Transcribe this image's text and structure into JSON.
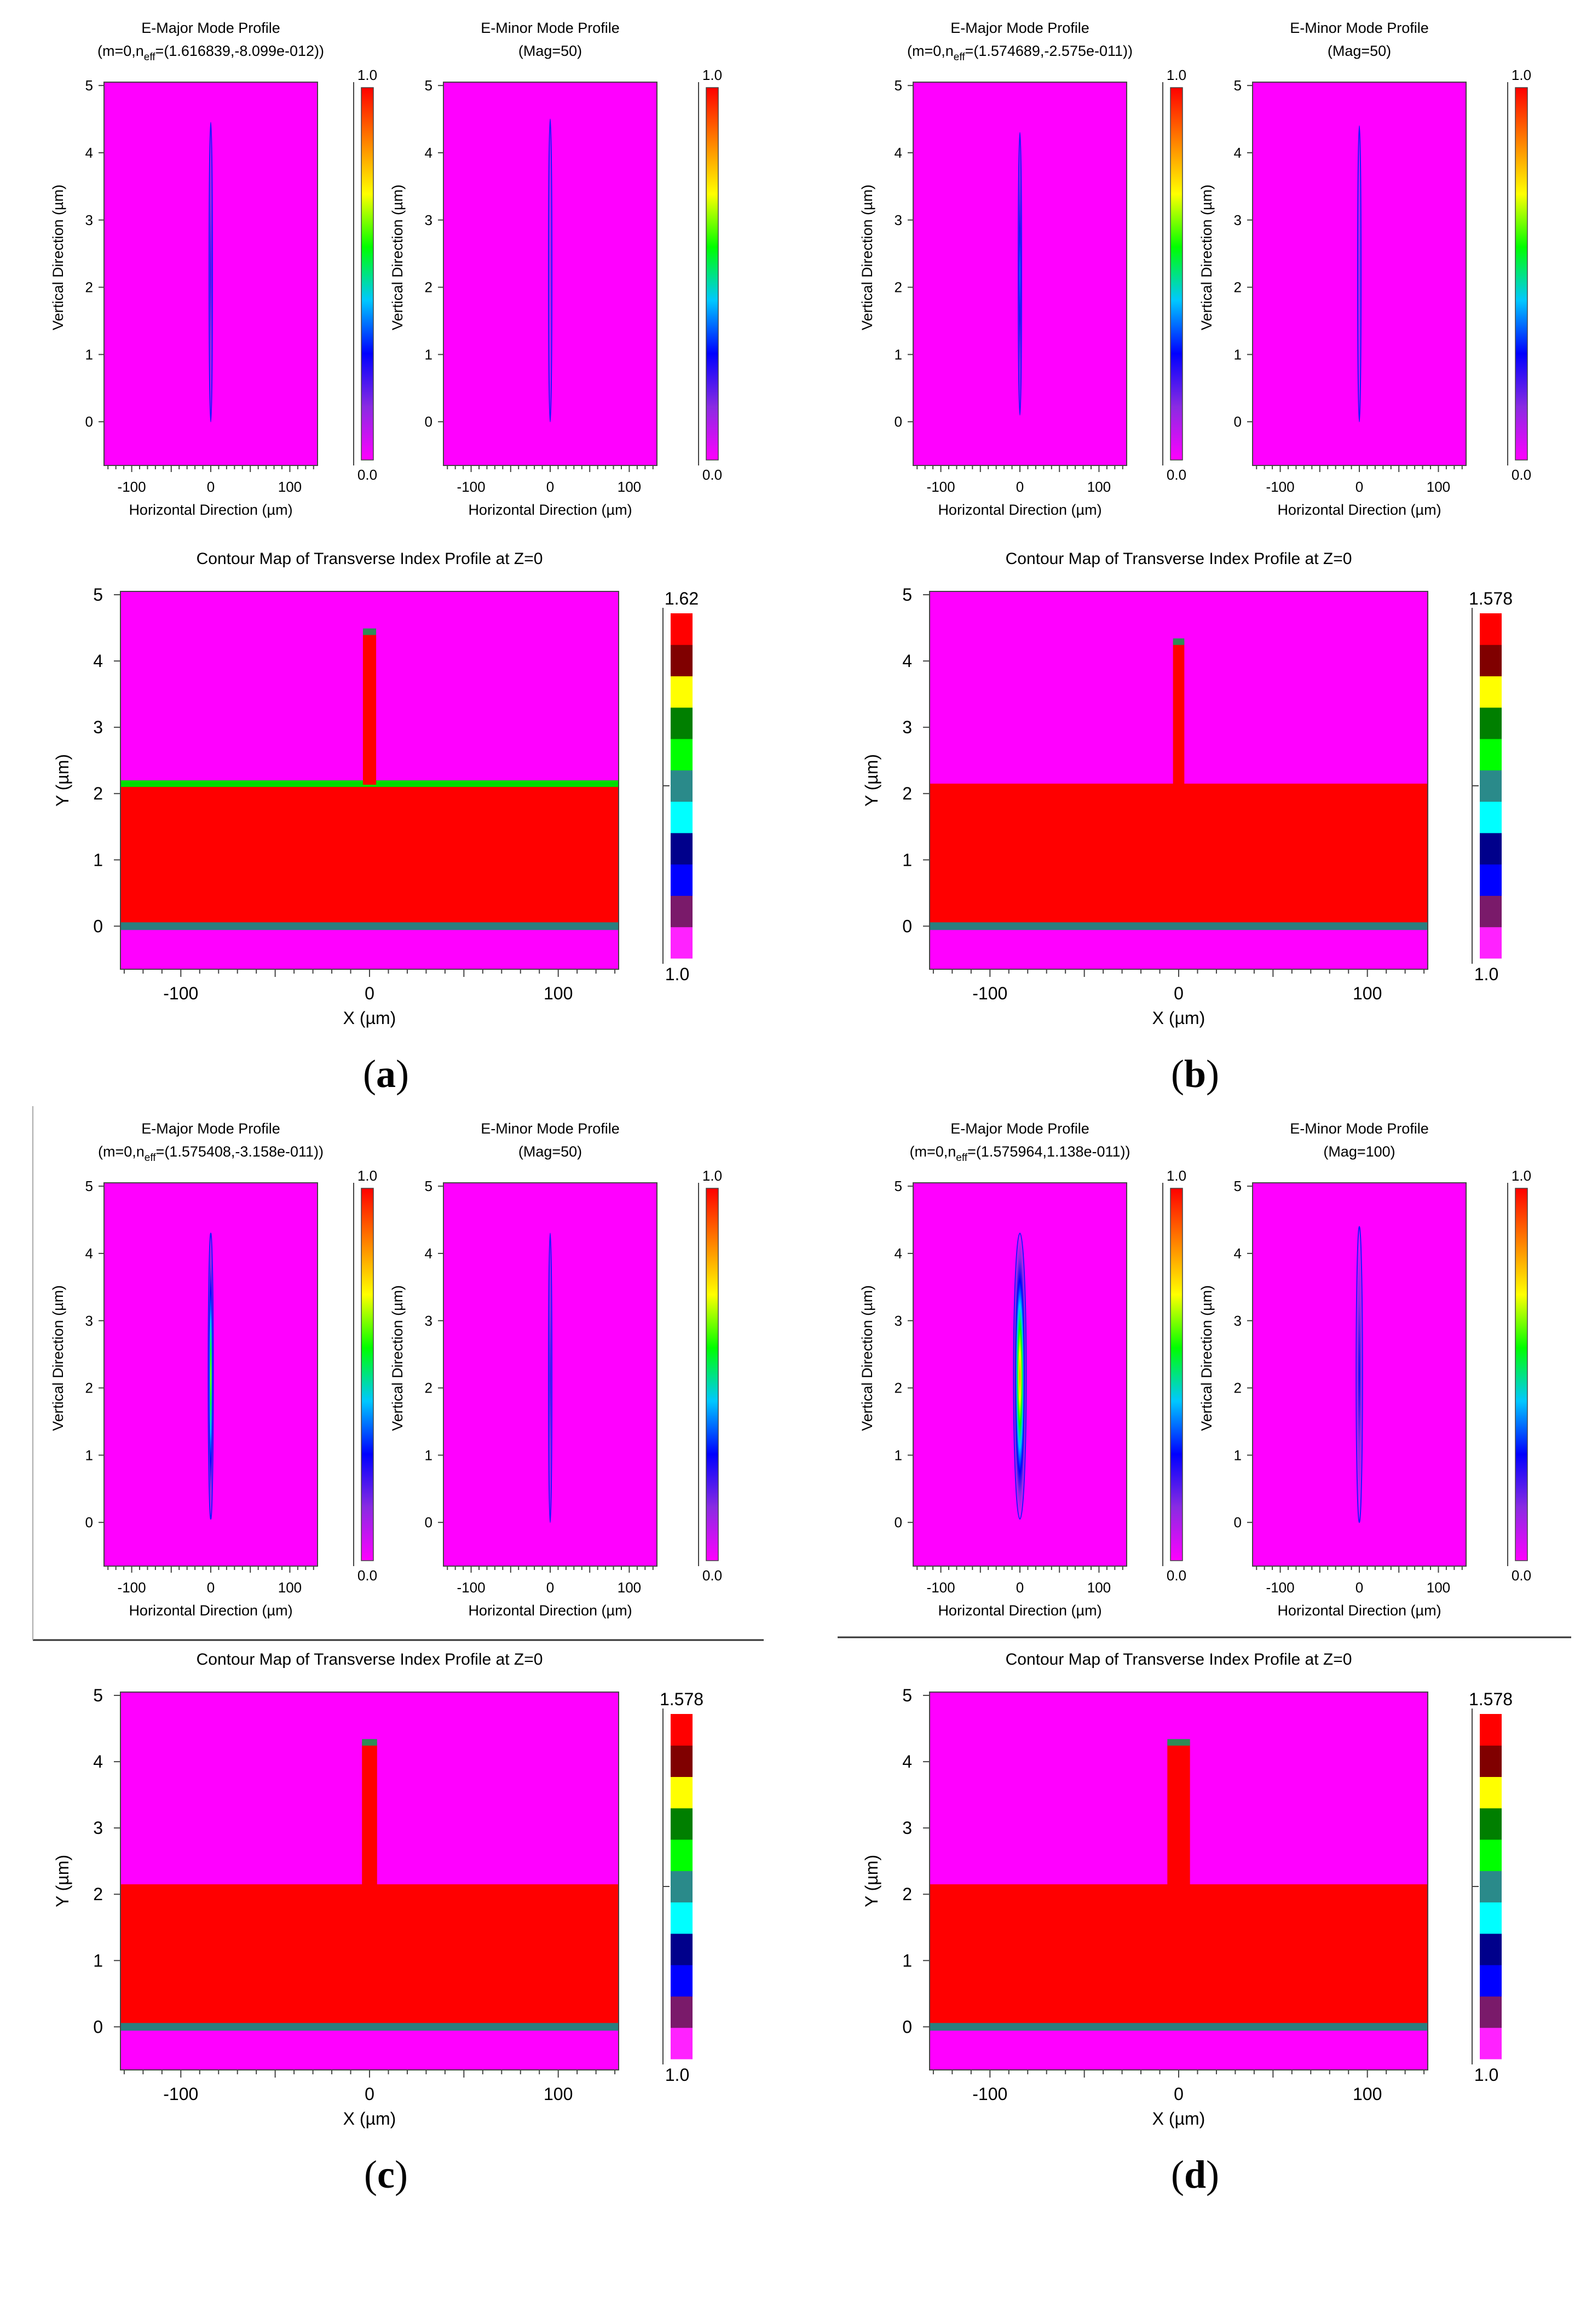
{
  "chart_data": [
    {
      "id": "a",
      "label": "(a)",
      "bold_letter": "a",
      "e_major": {
        "type": "heatmap",
        "title": "E-Major Mode Profile",
        "subtitle_parts": [
          "(m=0,n",
          "eff",
          "=(1.616839,-8.099e-012))"
        ],
        "xlabel": "Horizontal Direction (µm)",
        "ylabel": "Vertical Direction (µm)",
        "xlim": [
          -135,
          135
        ],
        "ylim": [
          -0.65,
          5.05
        ],
        "x_ticks": [
          -100,
          0,
          100
        ],
        "y_ticks": [
          0,
          1,
          2,
          3,
          4,
          5
        ],
        "colorbar": {
          "max_label": "1.0",
          "min_label": "0.0"
        },
        "mode": {
          "x_center": 0,
          "y_bottom": 0.0,
          "y_top": 4.45,
          "x_halfwidth": 1.8,
          "peak_intensity": 0.35
        }
      },
      "e_minor": {
        "type": "heatmap",
        "title": "E-Minor Mode Profile",
        "subtitle": "(Mag=50)",
        "xlabel": "Horizontal Direction (µm)",
        "ylabel": "Vertical Direction (µm)",
        "xlim": [
          -135,
          135
        ],
        "ylim": [
          -0.65,
          5.05
        ],
        "x_ticks": [
          -100,
          0,
          100
        ],
        "y_ticks": [
          0,
          1,
          2,
          3,
          4,
          5
        ],
        "colorbar": {
          "max_label": "1.0",
          "min_label": "0.0"
        },
        "mode": {
          "x_center": 0,
          "y_bottom": 0.0,
          "y_top": 4.5,
          "x_halfwidth": 1.0,
          "peak_intensity": 0.2
        }
      },
      "contour": {
        "type": "heatmap",
        "title": "Contour Map of Transverse Index Profile at Z=0",
        "xlabel": "X (µm)",
        "ylabel": "Y (µm)",
        "xlim": [
          -132,
          132
        ],
        "ylim": [
          -0.65,
          5.05
        ],
        "x_ticks": [
          -100,
          0,
          100
        ],
        "y_ticks": [
          0,
          1,
          2,
          3,
          4,
          5
        ],
        "colorbar": {
          "max_label": "1.62",
          "min_label": "1.0"
        },
        "structure": {
          "slab_top": 2.15,
          "rib_halfwidth": 3.5,
          "rib_top": 4.45,
          "slab_edge_color": "#00dd00",
          "rib_cap_color": "#2e8b57",
          "base_band_color": "#2a7f7f"
        }
      }
    },
    {
      "id": "b",
      "label": "(b)",
      "bold_letter": "b",
      "e_major": {
        "type": "heatmap",
        "title": "E-Major Mode Profile",
        "subtitle_parts": [
          "(m=0,n",
          "eff",
          "=(1.574689,-2.575e-011))"
        ],
        "xlabel": "Horizontal Direction (µm)",
        "ylabel": "Vertical Direction (µm)",
        "xlim": [
          -135,
          135
        ],
        "ylim": [
          -0.65,
          5.05
        ],
        "x_ticks": [
          -100,
          0,
          100
        ],
        "y_ticks": [
          0,
          1,
          2,
          3,
          4,
          5
        ],
        "colorbar": {
          "max_label": "1.0",
          "min_label": "0.0"
        },
        "mode": {
          "x_center": 0,
          "y_bottom": 0.1,
          "y_top": 4.3,
          "x_halfwidth": 2.0,
          "peak_intensity": 0.4
        }
      },
      "e_minor": {
        "type": "heatmap",
        "title": "E-Minor Mode Profile",
        "subtitle": "(Mag=50)",
        "xlabel": "Horizontal Direction (µm)",
        "ylabel": "Vertical Direction (µm)",
        "xlim": [
          -135,
          135
        ],
        "ylim": [
          -0.65,
          5.05
        ],
        "x_ticks": [
          -100,
          0,
          100
        ],
        "y_ticks": [
          0,
          1,
          2,
          3,
          4,
          5
        ],
        "colorbar": {
          "max_label": "1.0",
          "min_label": "0.0"
        },
        "mode": {
          "x_center": 0,
          "y_bottom": 0.0,
          "y_top": 4.4,
          "x_halfwidth": 1.0,
          "peak_intensity": 0.2
        }
      },
      "contour": {
        "type": "heatmap",
        "title": "Contour Map of Transverse Index Profile at Z=0",
        "xlabel": "X (µm)",
        "ylabel": "Y (µm)",
        "xlim": [
          -132,
          132
        ],
        "ylim": [
          -0.65,
          5.05
        ],
        "x_ticks": [
          -100,
          0,
          100
        ],
        "y_ticks": [
          0,
          1,
          2,
          3,
          4,
          5
        ],
        "colorbar": {
          "max_label": "1.578",
          "min_label": "1.0"
        },
        "structure": {
          "slab_top": 2.15,
          "rib_halfwidth": 3.0,
          "rib_top": 4.3,
          "slab_edge_color": "",
          "rib_cap_color": "#2e8b57",
          "base_band_color": "#2a7f7f"
        }
      }
    },
    {
      "id": "c",
      "label": "(c)",
      "bold_letter": "c",
      "e_major": {
        "type": "heatmap",
        "title": "E-Major Mode Profile",
        "subtitle_parts": [
          "(m=0,n",
          "eff",
          "=(1.575408,-3.158e-011))"
        ],
        "xlabel": "Horizontal Direction (µm)",
        "ylabel": "Vertical Direction (µm)",
        "xlim": [
          -135,
          135
        ],
        "ylim": [
          -0.65,
          5.05
        ],
        "x_ticks": [
          -100,
          0,
          100
        ],
        "y_ticks": [
          0,
          1,
          2,
          3,
          4,
          5
        ],
        "colorbar": {
          "max_label": "1.0",
          "min_label": "0.0"
        },
        "mode": {
          "x_center": 0,
          "y_bottom": 0.05,
          "y_top": 4.3,
          "x_halfwidth": 3.2,
          "peak_intensity": 0.65
        }
      },
      "e_minor": {
        "type": "heatmap",
        "title": "E-Minor Mode Profile",
        "subtitle": "(Mag=50)",
        "xlabel": "Horizontal Direction (µm)",
        "ylabel": "Vertical Direction (µm)",
        "xlim": [
          -135,
          135
        ],
        "ylim": [
          -0.65,
          5.05
        ],
        "x_ticks": [
          -100,
          0,
          100
        ],
        "y_ticks": [
          0,
          1,
          2,
          3,
          4,
          5
        ],
        "colorbar": {
          "max_label": "1.0",
          "min_label": "0.0"
        },
        "mode": {
          "x_center": 0,
          "y_bottom": 0.0,
          "y_top": 4.3,
          "x_halfwidth": 1.6,
          "peak_intensity": 0.3
        }
      },
      "contour": {
        "type": "heatmap",
        "title": "Contour Map of Transverse Index Profile at Z=0",
        "xlabel": "X (µm)",
        "ylabel": "Y (µm)",
        "xlim": [
          -132,
          132
        ],
        "ylim": [
          -0.65,
          5.05
        ],
        "x_ticks": [
          -100,
          0,
          100
        ],
        "y_ticks": [
          0,
          1,
          2,
          3,
          4,
          5
        ],
        "colorbar": {
          "max_label": "1.578",
          "min_label": "1.0"
        },
        "structure": {
          "slab_top": 2.15,
          "rib_halfwidth": 4.0,
          "rib_top": 4.3,
          "slab_edge_color": "",
          "rib_cap_color": "#2e8b57",
          "base_band_color": "#2a7f7f"
        }
      }
    },
    {
      "id": "d",
      "label": "(d)",
      "bold_letter": "d",
      "e_major": {
        "type": "heatmap",
        "title": "E-Major Mode Profile",
        "subtitle_parts": [
          "(m=0,n",
          "eff",
          "=(1.575964,1.138e-011))"
        ],
        "xlabel": "Horizontal Direction (µm)",
        "ylabel": "Vertical Direction (µm)",
        "xlim": [
          -135,
          135
        ],
        "ylim": [
          -0.65,
          5.05
        ],
        "x_ticks": [
          -100,
          0,
          100
        ],
        "y_ticks": [
          0,
          1,
          2,
          3,
          4,
          5
        ],
        "colorbar": {
          "max_label": "1.0",
          "min_label": "0.0"
        },
        "mode": {
          "x_center": 0,
          "y_bottom": 0.05,
          "y_top": 4.3,
          "x_halfwidth": 8.0,
          "peak_intensity": 0.8
        }
      },
      "e_minor": {
        "type": "heatmap",
        "title": "E-Minor Mode Profile",
        "subtitle": "(Mag=100)",
        "xlabel": "Horizontal Direction (µm)",
        "ylabel": "Vertical Direction (µm)",
        "xlim": [
          -135,
          135
        ],
        "ylim": [
          -0.65,
          5.05
        ],
        "x_ticks": [
          -100,
          0,
          100
        ],
        "y_ticks": [
          0,
          1,
          2,
          3,
          4,
          5
        ],
        "colorbar": {
          "max_label": "1.0",
          "min_label": "0.0"
        },
        "mode": {
          "x_center": 0,
          "y_bottom": 0.0,
          "y_top": 4.4,
          "x_halfwidth": 4.0,
          "peak_intensity": 0.3
        }
      },
      "contour": {
        "type": "heatmap",
        "title": "Contour Map of Transverse Index Profile at Z=0",
        "xlabel": "X (µm)",
        "ylabel": "Y (µm)",
        "xlim": [
          -132,
          132
        ],
        "ylim": [
          -0.65,
          5.05
        ],
        "x_ticks": [
          -100,
          0,
          100
        ],
        "y_ticks": [
          0,
          1,
          2,
          3,
          4,
          5
        ],
        "colorbar": {
          "max_label": "1.578",
          "min_label": "1.0"
        },
        "structure": {
          "slab_top": 2.15,
          "rib_halfwidth": 6.0,
          "rib_top": 4.3,
          "slab_edge_color": "",
          "rib_cap_color": "#2e8b57",
          "base_band_color": "#2a7f7f"
        }
      }
    }
  ],
  "colors": {
    "background": "#ff00ff",
    "core": "#ff0000",
    "mode_gradient": [
      "#ff00ff",
      "#8a2be2",
      "#0000ff",
      "#00c8ff",
      "#00ff00",
      "#ffff00",
      "#ff8000",
      "#ff0000"
    ],
    "index_steps": [
      "#ff22ff",
      "#7a1a6a",
      "#0000ff",
      "#00008b",
      "#00ffff",
      "#2a8a8a",
      "#00ff00",
      "#007f00",
      "#ffff00",
      "#800000",
      "#ff0000"
    ]
  }
}
